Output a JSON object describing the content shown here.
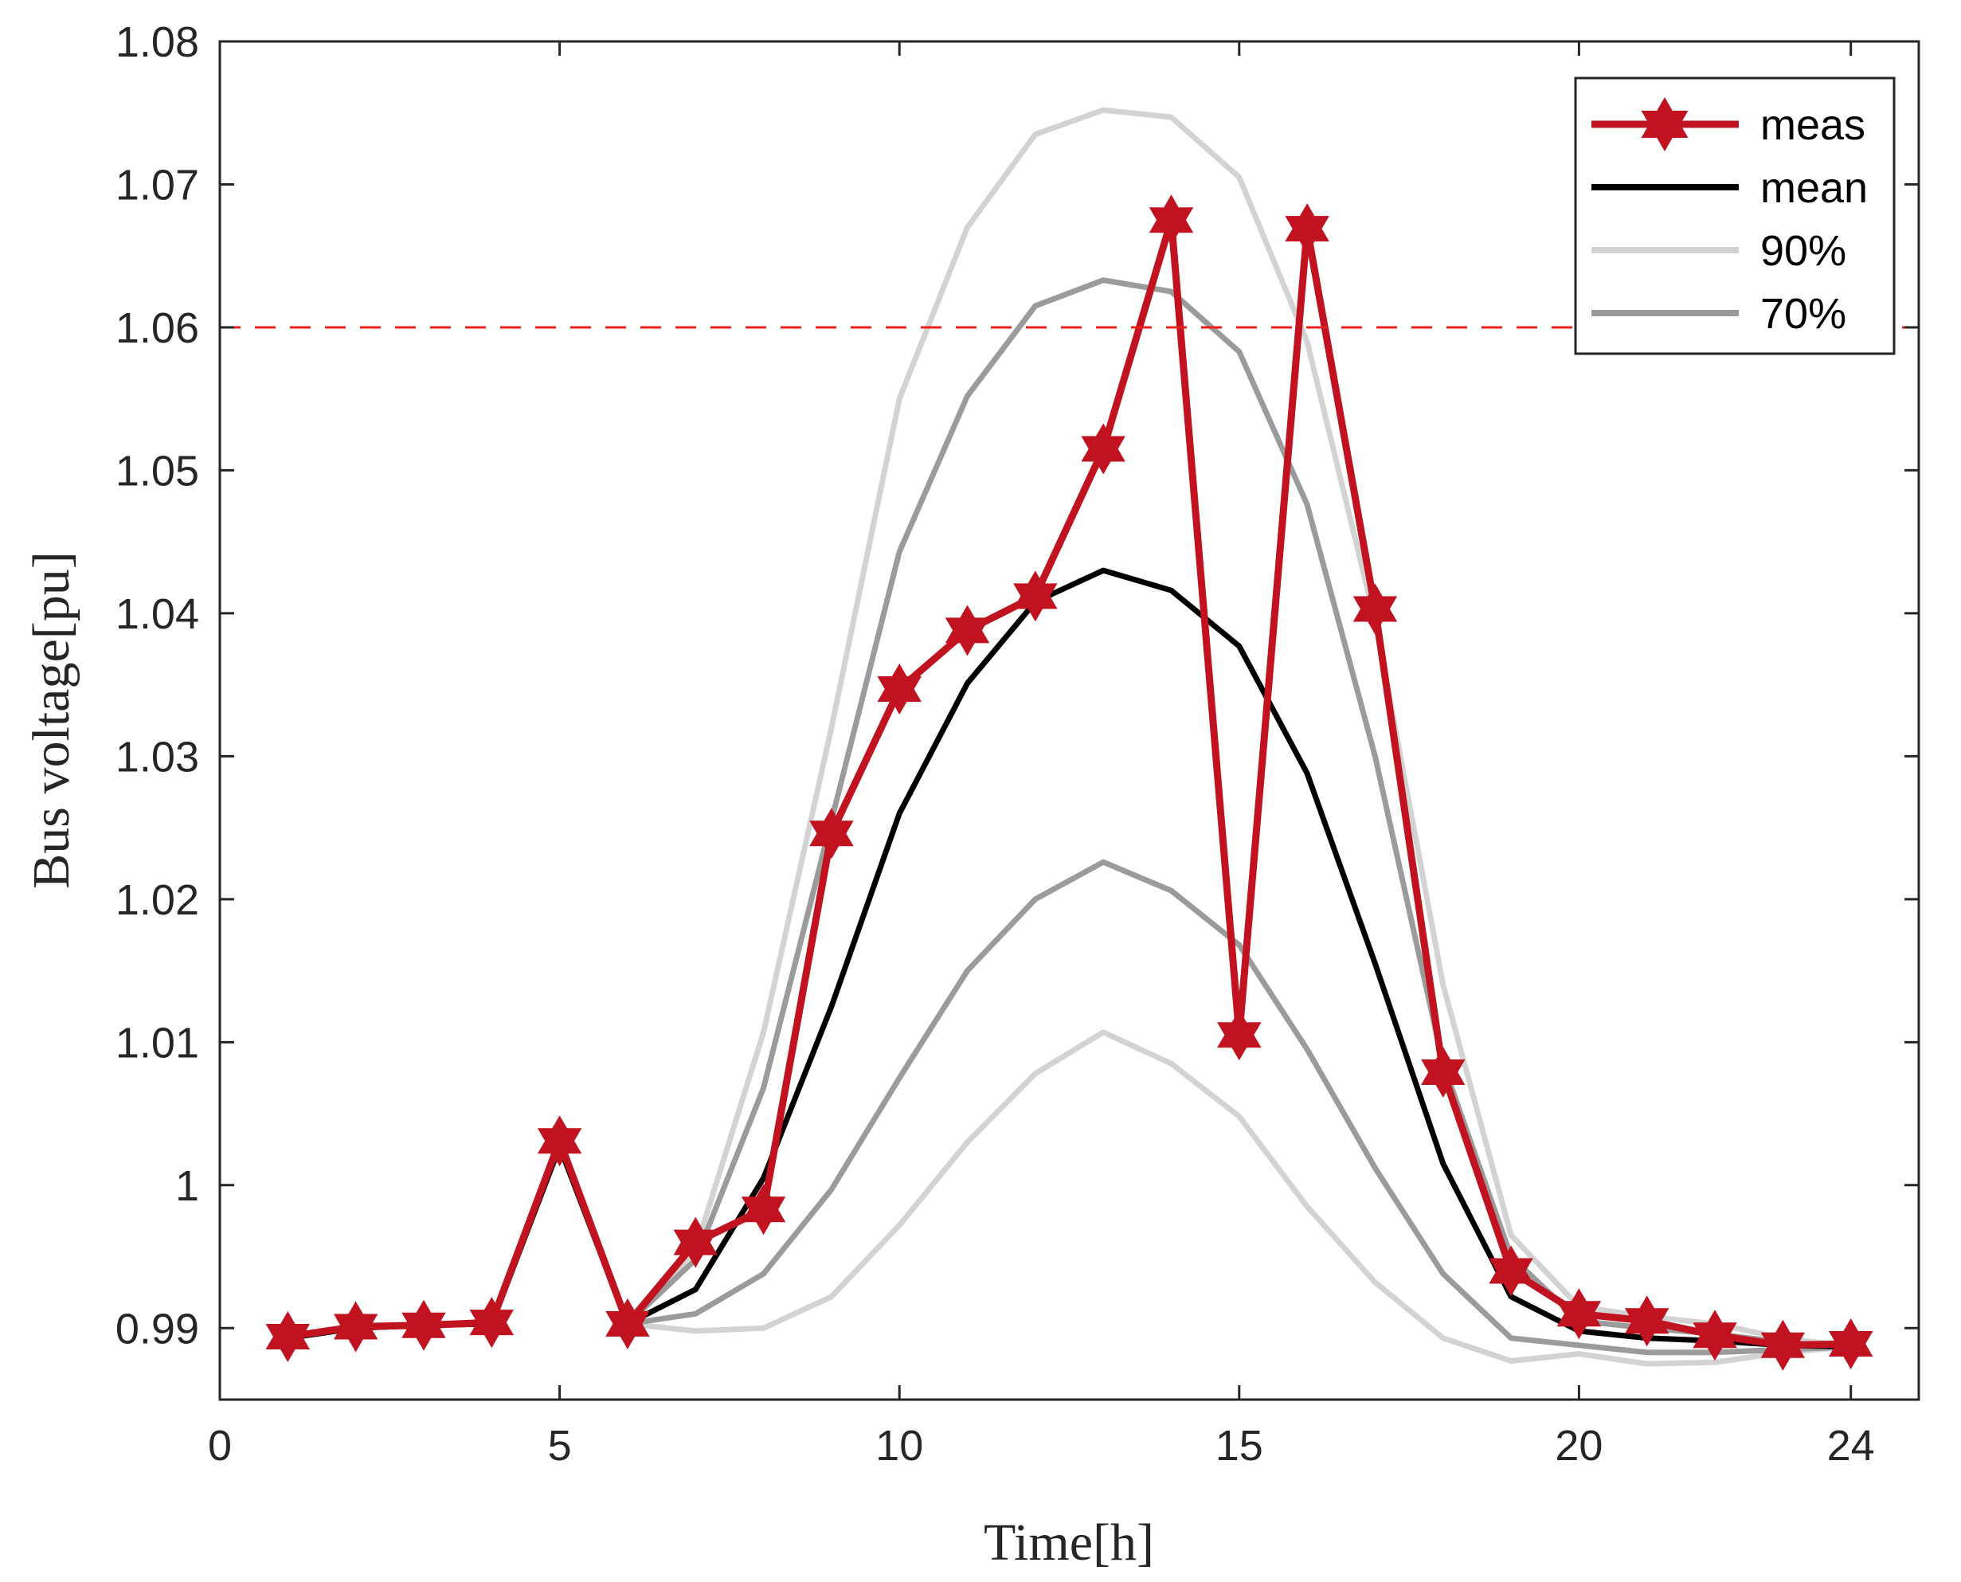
{
  "chart_data": {
    "type": "line",
    "title": "",
    "xlabel": "Time[h]",
    "ylabel": "Bus voltage[pu]",
    "xlim": [
      0,
      25
    ],
    "ylim": [
      0.985,
      1.08
    ],
    "xticks": [
      0,
      5,
      10,
      15,
      20,
      24
    ],
    "xtick_labels": [
      "0",
      "5",
      "10",
      "15",
      "20",
      "24"
    ],
    "yticks": [
      0.99,
      1.0,
      1.01,
      1.02,
      1.03,
      1.04,
      1.05,
      1.06,
      1.07,
      1.08
    ],
    "ytick_labels": [
      "0.99",
      "1",
      "1.01",
      "1.02",
      "1.03",
      "1.04",
      "1.05",
      "1.06",
      "1.07",
      "1.08"
    ],
    "grid": false,
    "legend_position": "top-right",
    "x": [
      1,
      2,
      3,
      4,
      5,
      6,
      7,
      8,
      9,
      10,
      11,
      12,
      13,
      14,
      15,
      16,
      17,
      18,
      19,
      20,
      21,
      22,
      23,
      24
    ],
    "series": [
      {
        "name": "90%",
        "role": "band-upper",
        "color": "#d3d3d3",
        "marker": "none",
        "values": [
          0.9893,
          0.99,
          0.9902,
          0.9903,
          1.0027,
          0.9903,
          0.9955,
          1.0107,
          1.032,
          1.055,
          1.067,
          1.0735,
          1.0752,
          1.0747,
          1.0705,
          1.059,
          1.0395,
          1.014,
          0.9965,
          0.9915,
          0.9908,
          0.9903,
          0.9893,
          0.9887
        ]
      },
      {
        "name": "90%",
        "role": "band-lower",
        "color": "#d3d3d3",
        "marker": "none",
        "values": [
          0.9893,
          0.99,
          0.9902,
          0.9903,
          1.0027,
          0.9903,
          0.9898,
          0.99,
          0.9922,
          0.9972,
          1.003,
          1.0078,
          1.0107,
          1.0085,
          1.0048,
          0.9985,
          0.9932,
          0.9893,
          0.9877,
          0.9882,
          0.9875,
          0.9876,
          0.9883,
          0.9887
        ]
      },
      {
        "name": "70%",
        "role": "band-upper",
        "color": "#9b9b9b",
        "marker": "none",
        "values": [
          0.9893,
          0.99,
          0.9902,
          0.9903,
          1.0027,
          0.9903,
          0.9948,
          1.0068,
          1.0255,
          1.0443,
          1.0552,
          1.0615,
          1.0633,
          1.0625,
          1.0583,
          1.0476,
          1.03,
          1.0085,
          0.995,
          0.9905,
          0.99,
          0.9896,
          0.989,
          0.9887
        ]
      },
      {
        "name": "70%",
        "role": "band-lower",
        "color": "#9b9b9b",
        "marker": "none",
        "values": [
          0.9893,
          0.99,
          0.9902,
          0.9903,
          1.0027,
          0.9903,
          0.991,
          0.9938,
          0.9997,
          1.0075,
          1.015,
          1.02,
          1.0226,
          1.0206,
          1.0168,
          1.0095,
          1.0012,
          0.9938,
          0.9893,
          0.9888,
          0.9883,
          0.9883,
          0.9885,
          0.9887
        ]
      },
      {
        "name": "mean",
        "color": "#000000",
        "marker": "none",
        "values": [
          0.9893,
          0.99,
          0.9902,
          0.9903,
          1.0027,
          0.9903,
          0.9927,
          1.0005,
          1.0125,
          1.026,
          1.0351,
          1.0408,
          1.043,
          1.0416,
          1.0377,
          1.0288,
          1.0155,
          1.0015,
          0.9922,
          0.9898,
          0.9893,
          0.9891,
          0.9888,
          0.9887
        ]
      },
      {
        "name": "meas",
        "color": "#c1121f",
        "marker": "hexagram",
        "values": [
          0.9894,
          0.9901,
          0.9902,
          0.9904,
          1.0031,
          0.9903,
          0.996,
          0.9983,
          1.0246,
          1.0347,
          1.0388,
          1.0412,
          1.0515,
          1.0675,
          1.0105,
          1.0669,
          1.0403,
          1.0079,
          0.994,
          0.991,
          0.9905,
          0.9895,
          0.9888,
          0.9889
        ]
      }
    ],
    "reference_line": {
      "y": 1.06,
      "color": "#e8201c",
      "style": "dashed"
    },
    "legend": [
      {
        "label": "meas",
        "color": "#c1121f",
        "marker": "hexagram"
      },
      {
        "label": "mean",
        "color": "#000000",
        "marker": "none"
      },
      {
        "label": "90%",
        "color": "#d3d3d3",
        "marker": "none"
      },
      {
        "label": "70%",
        "color": "#9b9b9b",
        "marker": "none"
      }
    ]
  }
}
